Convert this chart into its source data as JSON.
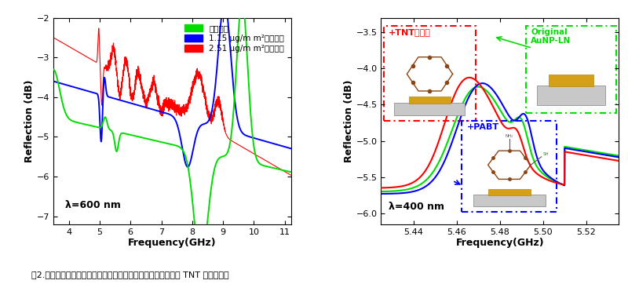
{
  "left_plot": {
    "xlim": [
      3.5,
      11.2
    ],
    "ylim": [
      -7.2,
      -2.0
    ],
    "yticks": [
      -7,
      -6,
      -5,
      -4,
      -3,
      -2
    ],
    "xticks": [
      4,
      5,
      6,
      7,
      8,
      9,
      10,
      11
    ],
    "xlabel": "Frequency(GHz)",
    "ylabel": "Reflection (dB)",
    "annotation": "λ=600 nm",
    "legend": [
      {
        "label": "初始状态",
        "color": "#00dd00"
      },
      {
        "label": "1.15 μg/m m²质量负载",
        "color": "#0000ff"
      },
      {
        "label": "2.51 μg/m m²质量负载",
        "color": "#ff0000"
      }
    ]
  },
  "right_plot": {
    "xlim": [
      5.425,
      5.535
    ],
    "ylim": [
      -6.15,
      -3.3
    ],
    "yticks": [
      -6.0,
      -5.5,
      -5.0,
      -4.5,
      -4.0,
      -3.5
    ],
    "xticks": [
      5.44,
      5.46,
      5.48,
      5.5,
      5.52
    ],
    "xlabel": "Frequency(GHz)",
    "ylabel": "Reflection (dB)",
    "annotation": "λ=400 nm",
    "label_tnt": "+TNT爆炸物",
    "label_pabt": "+PABT",
    "label_original": "Original\nAuNP-LN"
  },
  "caption": "图2.基于超高频声表面波器件电极质量负载效应的微质量探测和 TNT 超灵敏测测",
  "colors": {
    "green": "#00dd00",
    "blue": "#0000ff",
    "red": "#ff0000"
  }
}
